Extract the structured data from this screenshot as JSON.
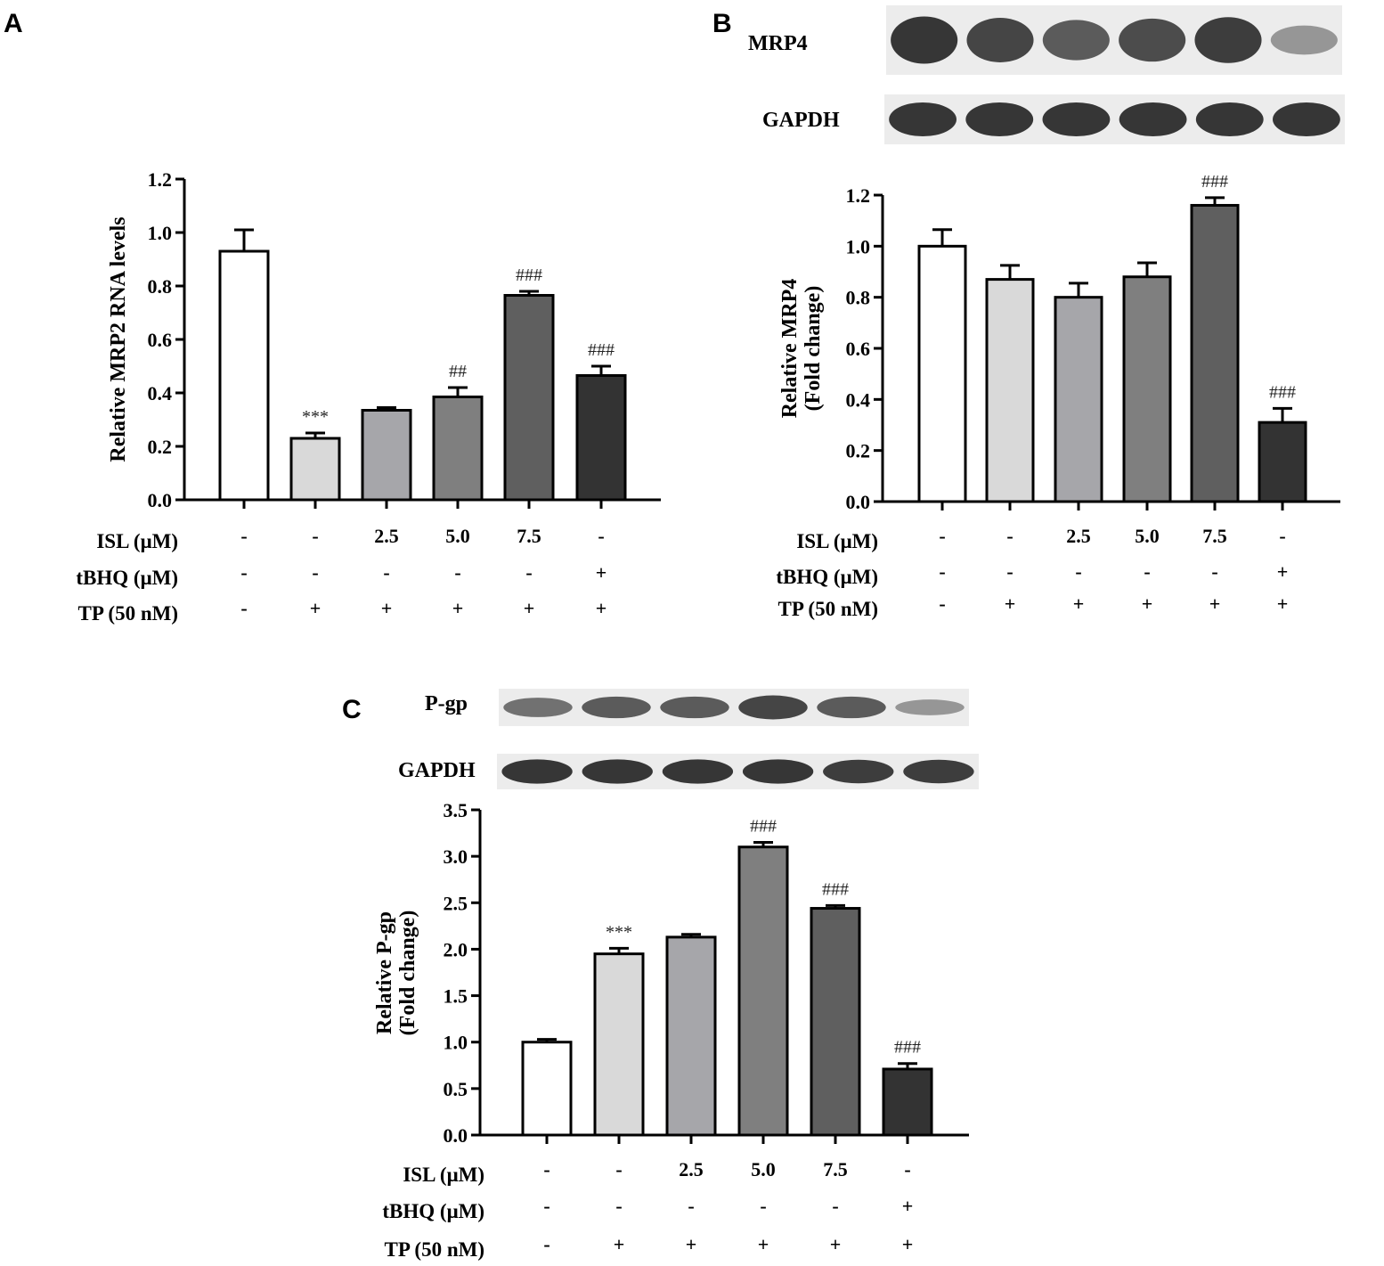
{
  "chart_data": [
    {
      "panel": "A",
      "type": "bar",
      "ylabel": "Relative MRP2 RNA levels",
      "ylim": [
        0,
        1.2
      ],
      "yticks": [
        "0.0",
        "0.2",
        "0.4",
        "0.6",
        "0.8",
        "1.0",
        "1.2"
      ],
      "values": [
        0.93,
        0.23,
        0.335,
        0.385,
        0.765,
        0.465
      ],
      "errors": [
        0.08,
        0.02,
        0.01,
        0.035,
        0.015,
        0.035
      ],
      "significance": [
        "",
        "***",
        "",
        "##",
        "###",
        "###"
      ],
      "colors": [
        "#ffffff",
        "#d9d9d9",
        "#a6a6aa",
        "#7f7f7f",
        "#5f5f5f",
        "#333333"
      ],
      "conditions": [
        {
          "label": "ISL (μM)",
          "values": [
            "-",
            "-",
            "2.5",
            "5.0",
            "7.5",
            "-"
          ]
        },
        {
          "label": "tBHQ (μM)",
          "values": [
            "-",
            "-",
            "-",
            "-",
            "-",
            "+"
          ]
        },
        {
          "label": "TP (50 nM)",
          "values": [
            "-",
            "+",
            "+",
            "+",
            "+",
            "+"
          ]
        }
      ]
    },
    {
      "panel": "B",
      "type": "bar",
      "ylabel": [
        "Relative MRP4",
        "(Fold change)"
      ],
      "ylim": [
        0,
        1.2
      ],
      "yticks": [
        "0.0",
        "0.2",
        "0.4",
        "0.6",
        "0.8",
        "1.0",
        "1.2"
      ],
      "values": [
        1.0,
        0.87,
        0.8,
        0.88,
        1.16,
        0.31
      ],
      "errors": [
        0.065,
        0.055,
        0.055,
        0.055,
        0.03,
        0.055
      ],
      "significance": [
        "",
        "",
        "",
        "",
        "###",
        "###"
      ],
      "colors": [
        "#ffffff",
        "#d9d9d9",
        "#a6a6aa",
        "#7f7f7f",
        "#5f5f5f",
        "#333333"
      ],
      "blots": [
        {
          "label": "MRP4",
          "intensity": [
            0.95,
            0.85,
            0.7,
            0.8,
            0.9,
            0.3
          ]
        },
        {
          "label": "GAPDH",
          "intensity": [
            0.95,
            0.95,
            0.95,
            0.95,
            0.95,
            0.95
          ]
        }
      ],
      "conditions": [
        {
          "label": "ISL (μM)",
          "values": [
            "-",
            "-",
            "2.5",
            "5.0",
            "7.5",
            "-"
          ]
        },
        {
          "label": "tBHQ (μM)",
          "values": [
            "-",
            "-",
            "-",
            "-",
            "-",
            "+"
          ]
        },
        {
          "label": "TP (50 nM)",
          "values": [
            "-",
            "+",
            "+",
            "+",
            "+",
            "+"
          ]
        }
      ]
    },
    {
      "panel": "C",
      "type": "bar",
      "ylabel": [
        "Relative P-gp",
        "(Fold change)"
      ],
      "ylim": [
        0,
        3.5
      ],
      "yticks": [
        "0.0",
        "0.5",
        "1.0",
        "1.5",
        "2.0",
        "2.5",
        "3.0",
        "3.5"
      ],
      "values": [
        1.0,
        1.95,
        2.13,
        3.1,
        2.44,
        0.71
      ],
      "errors": [
        0.03,
        0.06,
        0.03,
        0.05,
        0.03,
        0.06
      ],
      "significance": [
        "",
        "***",
        "",
        "###",
        "###",
        "###"
      ],
      "colors": [
        "#ffffff",
        "#d9d9d9",
        "#a6a6aa",
        "#7f7f7f",
        "#5f5f5f",
        "#333333"
      ],
      "blots": [
        {
          "label": "P-gp",
          "intensity": [
            0.55,
            0.7,
            0.7,
            0.85,
            0.7,
            0.3
          ]
        },
        {
          "label": "GAPDH",
          "intensity": [
            0.95,
            0.95,
            0.95,
            0.95,
            0.9,
            0.9
          ]
        }
      ],
      "conditions": [
        {
          "label": "ISL (μM)",
          "values": [
            "-",
            "-",
            "2.5",
            "5.0",
            "7.5",
            "-"
          ]
        },
        {
          "label": "tBHQ (μM)",
          "values": [
            "-",
            "-",
            "-",
            "-",
            "-",
            "+"
          ]
        },
        {
          "label": "TP (50 nM)",
          "values": [
            "-",
            "+",
            "+",
            "+",
            "+",
            "+"
          ]
        }
      ]
    }
  ]
}
